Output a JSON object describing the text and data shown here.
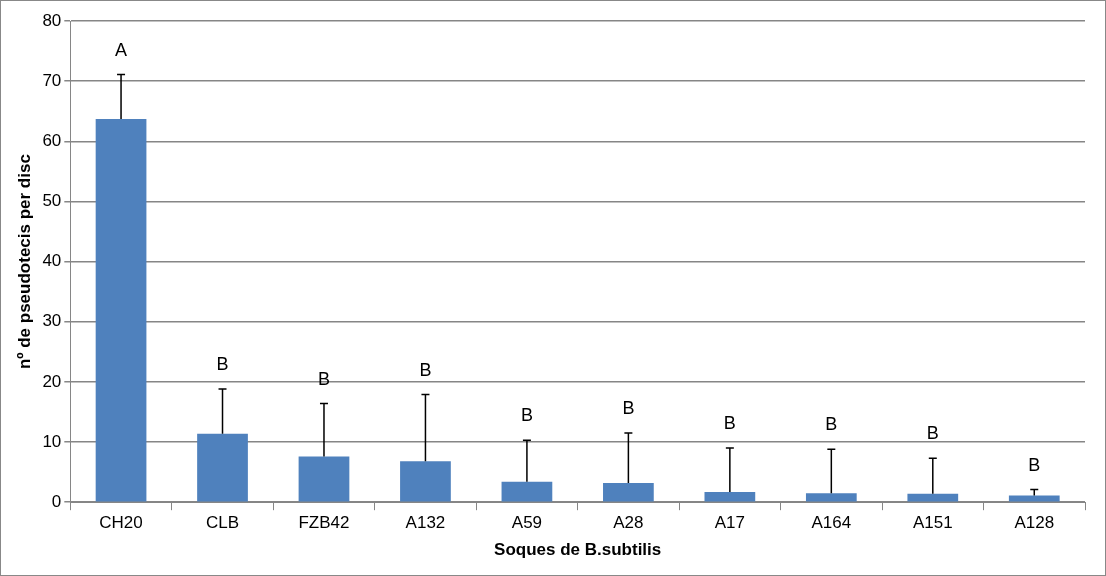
{
  "chart_data": {
    "type": "bar",
    "xlabel": "Soques de B.subtilis",
    "ylabel": "nº de pseudotecis per disc",
    "categories": [
      "CH20",
      "CLB",
      "FZB42",
      "A132",
      "A59",
      "A28",
      "A17",
      "A164",
      "A151",
      "A128"
    ],
    "values": [
      63.7,
      11.4,
      7.6,
      6.8,
      3.4,
      3.2,
      1.7,
      1.5,
      1.4,
      1.1
    ],
    "errors": [
      [
        63.7,
        71.1
      ],
      [
        11.4,
        18.8
      ],
      [
        7.6,
        16.4
      ],
      [
        6.8,
        17.9
      ],
      [
        3.4,
        10.3
      ],
      [
        3.2,
        11.5
      ],
      [
        1.7,
        9.0
      ],
      [
        1.5,
        8.8
      ],
      [
        1.4,
        7.3
      ],
      [
        1.1,
        2.1
      ]
    ],
    "color": "#4f81bd",
    "ylim": [
      0,
      80
    ],
    "yticks": [
      0,
      10,
      20,
      30,
      40,
      50,
      60,
      70,
      80
    ],
    "grid": "y",
    "legend": false,
    "annotations": [
      "A",
      "B",
      "B",
      "B",
      "B",
      "B",
      "B",
      "B",
      "B",
      "B"
    ]
  }
}
